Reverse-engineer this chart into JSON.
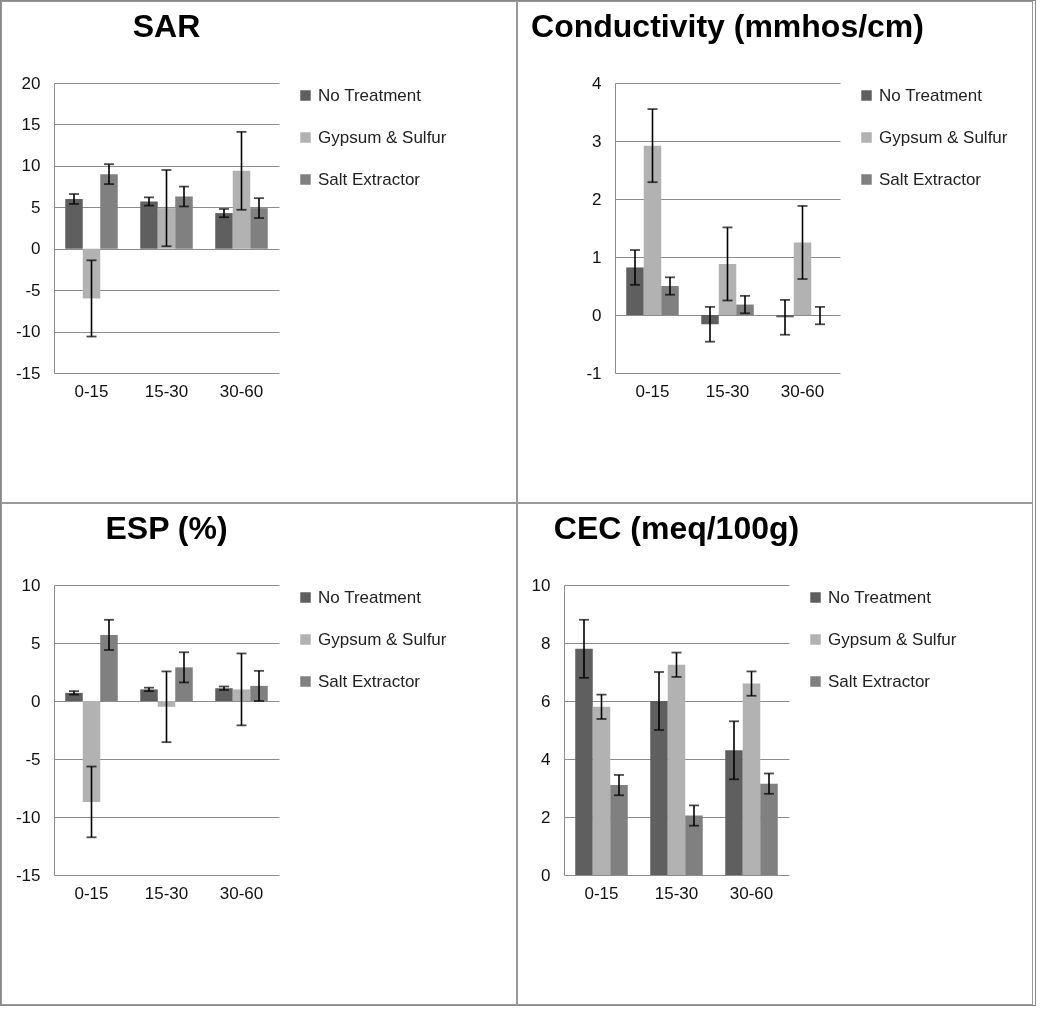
{
  "chart_data": [
    {
      "type": "bar",
      "title": "SAR",
      "categories": [
        "0-15",
        "15-30",
        "30-60"
      ],
      "ylim": [
        -15,
        20
      ],
      "yticks": [
        -15,
        -10,
        -5,
        0,
        5,
        10,
        15,
        20
      ],
      "grid": "y",
      "legend": "right",
      "series": [
        {
          "name": "No Treatment",
          "color": "#5f5f5f",
          "values": [
            6,
            5.7,
            4.3
          ],
          "errors": [
            0.6,
            0.5,
            0.5
          ]
        },
        {
          "name": "Gypsum & Sulfur",
          "color": "#b2b2b2",
          "values": [
            -6,
            4.9,
            9.4
          ],
          "errors": [
            4.6,
            4.6,
            4.7
          ]
        },
        {
          "name": "Salt Extractor",
          "color": "#808080",
          "values": [
            9,
            6.3,
            4.9
          ],
          "errors": [
            1.2,
            1.2,
            1.2
          ]
        }
      ]
    },
    {
      "type": "bar",
      "title": "Conductivity (mmhos/cm)",
      "categories": [
        "0-15",
        "15-30",
        "30-60"
      ],
      "ylim": [
        -1,
        4
      ],
      "yticks": [
        -1,
        0,
        1,
        2,
        3,
        4
      ],
      "grid": "y",
      "legend": "right",
      "series": [
        {
          "name": "No Treatment",
          "color": "#5f5f5f",
          "values": [
            0.82,
            -0.16,
            -0.04
          ],
          "errors": [
            0.3,
            0.3,
            0.3
          ]
        },
        {
          "name": "Gypsum & Sulfur",
          "color": "#b2b2b2",
          "values": [
            2.92,
            0.88,
            1.25
          ],
          "errors": [
            0.63,
            0.63,
            0.63
          ]
        },
        {
          "name": "Salt Extractor",
          "color": "#808080",
          "values": [
            0.5,
            0.18,
            -0.01
          ],
          "errors": [
            0.15,
            0.15,
            0.15
          ]
        }
      ]
    },
    {
      "type": "bar",
      "title": "ESP (%)",
      "categories": [
        "0-15",
        "15-30",
        "30-60"
      ],
      "ylim": [
        -15,
        10
      ],
      "yticks": [
        -15,
        -10,
        -5,
        0,
        5,
        10
      ],
      "grid": "y",
      "legend": "right",
      "series": [
        {
          "name": "No Treatment",
          "color": "#5f5f5f",
          "values": [
            0.7,
            1.0,
            1.1
          ],
          "errors": [
            0.15,
            0.15,
            0.15
          ]
        },
        {
          "name": "Gypsum & Sulfur",
          "color": "#b2b2b2",
          "values": [
            -8.7,
            -0.5,
            1.0
          ],
          "errors": [
            3.05,
            3.05,
            3.1
          ]
        },
        {
          "name": "Salt Extractor",
          "color": "#808080",
          "values": [
            5.7,
            2.9,
            1.3
          ],
          "errors": [
            1.3,
            1.3,
            1.3
          ]
        }
      ]
    },
    {
      "type": "bar",
      "title": "CEC (meq/100g)",
      "categories": [
        "0-15",
        "15-30",
        "30-60"
      ],
      "ylim": [
        0,
        10
      ],
      "yticks": [
        0,
        2,
        4,
        6,
        8,
        10
      ],
      "grid": "y",
      "legend": "right",
      "series": [
        {
          "name": "No Treatment",
          "color": "#5f5f5f",
          "values": [
            7.8,
            6,
            4.3
          ],
          "errors": [
            1.0,
            1.0,
            1.0
          ]
        },
        {
          "name": "Gypsum & Sulfur",
          "color": "#b2b2b2",
          "values": [
            5.8,
            7.25,
            6.6
          ],
          "errors": [
            0.42,
            0.42,
            0.42
          ]
        },
        {
          "name": "Salt Extractor",
          "color": "#808080",
          "values": [
            3.1,
            2.05,
            3.15
          ],
          "errors": [
            0.35,
            0.35,
            0.35
          ]
        }
      ]
    }
  ]
}
